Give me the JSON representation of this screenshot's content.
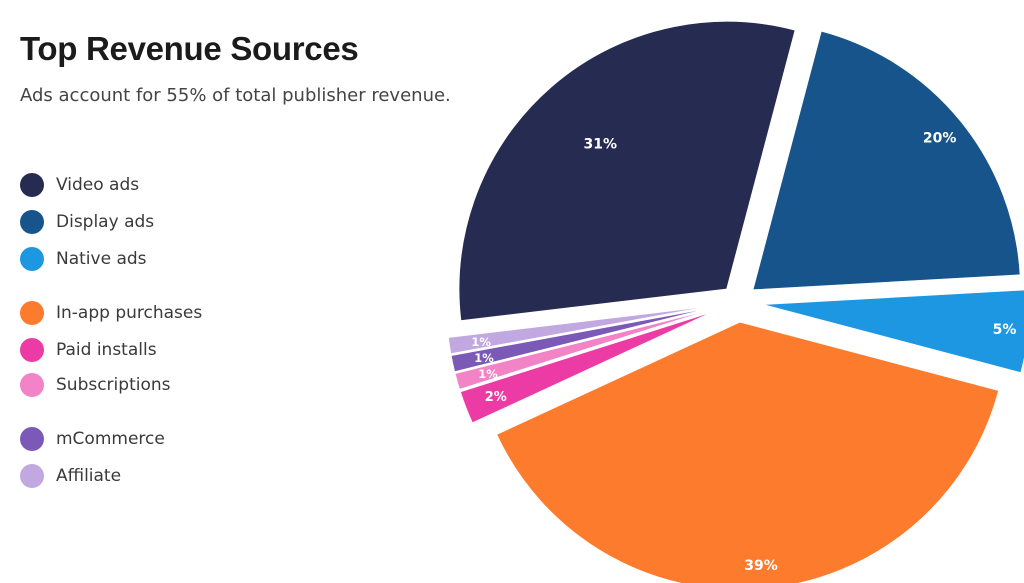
{
  "chart_data": {
    "type": "pie",
    "title": "Top Revenue Sources",
    "subtitle": "Ads account for 55% of total publisher revenue.",
    "legend_placement": "left",
    "slices": [
      {
        "name": "Video ads",
        "value": 31,
        "label": "31%",
        "color": "#262b52"
      },
      {
        "name": "Display ads",
        "value": 20,
        "label": "20%",
        "color": "#17548b"
      },
      {
        "name": "Native ads",
        "value": 5,
        "label": "5%",
        "color": "#1e97e2"
      },
      {
        "name": "In-app purchases",
        "value": 39,
        "label": "39%",
        "color": "#fd7b2c"
      },
      {
        "name": "Paid installs",
        "value": 2,
        "label": "2%",
        "color": "#ec3ba5"
      },
      {
        "name": "Subscriptions",
        "value": 1,
        "label": "1%",
        "color": "#f283c6"
      },
      {
        "name": "mCommerce",
        "value": 1,
        "label": "1%",
        "color": "#7b59b7"
      },
      {
        "name": "Affiliate",
        "value": 1,
        "label": "1%",
        "color": "#c2a8e0"
      }
    ]
  }
}
